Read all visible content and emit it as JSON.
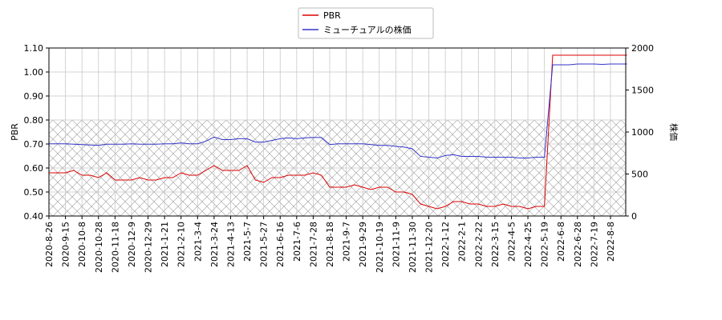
{
  "chart_data": {
    "type": "line",
    "categories": [
      "2020-8-26",
      null,
      "2020-9-15",
      null,
      "2020-10-8",
      null,
      "2020-10-28",
      null,
      "2020-11-18",
      null,
      "2020-12-9",
      null,
      "2020-12-29",
      null,
      "2021-1-21",
      null,
      "2021-2-10",
      null,
      "2021-3-4",
      null,
      "2021-3-24",
      null,
      "2021-4-13",
      null,
      "2021-5-7",
      null,
      "2021-5-27",
      null,
      "2021-6-16",
      null,
      "2021-7-6",
      null,
      "2021-7-28",
      null,
      "2021-8-18",
      null,
      "2021-9-7",
      null,
      "2021-9-29",
      null,
      "2021-10-19",
      null,
      "2021-11-9",
      null,
      "2021-11-30",
      null,
      "2021-12-20",
      null,
      "2022-1-12",
      null,
      "2022-2-1",
      null,
      "2022-2-22",
      null,
      "2022-3-15",
      null,
      "2022-4-5",
      null,
      "2022-4-25",
      null,
      "2022-5-19",
      null,
      "2022-6-8",
      null,
      "2022-6-28",
      null,
      "2022-7-19",
      null,
      "2022-8-8",
      null,
      null
    ],
    "series": [
      {
        "name": "PBR",
        "color": "#dd0000",
        "axis": "y",
        "values": [
          0.58,
          0.58,
          0.58,
          0.59,
          0.57,
          0.57,
          0.56,
          0.58,
          0.55,
          0.55,
          0.55,
          0.56,
          0.55,
          0.55,
          0.56,
          0.56,
          0.58,
          0.57,
          0.57,
          0.59,
          0.61,
          0.59,
          0.59,
          0.59,
          0.61,
          0.55,
          0.54,
          0.56,
          0.56,
          0.57,
          0.57,
          0.57,
          0.58,
          0.57,
          0.52,
          0.52,
          0.52,
          0.53,
          0.52,
          0.51,
          0.52,
          0.52,
          0.5,
          0.5,
          0.49,
          0.45,
          0.44,
          0.43,
          0.44,
          0.46,
          0.46,
          0.45,
          0.45,
          0.44,
          0.44,
          0.45,
          0.44,
          0.44,
          0.43,
          0.44,
          0.44,
          1.07,
          1.07,
          1.07,
          1.07,
          1.07,
          1.07,
          1.07,
          1.07,
          1.07,
          1.07
        ]
      },
      {
        "name": "ミューチュアルの株価",
        "color": "#3333cc",
        "axis": "y2",
        "values": [
          860,
          860,
          860,
          855,
          850,
          845,
          840,
          855,
          855,
          855,
          860,
          855,
          855,
          855,
          860,
          860,
          870,
          860,
          860,
          890,
          940,
          910,
          910,
          920,
          920,
          880,
          880,
          900,
          920,
          930,
          920,
          930,
          935,
          935,
          850,
          860,
          860,
          860,
          860,
          850,
          840,
          840,
          830,
          820,
          800,
          710,
          700,
          690,
          720,
          730,
          710,
          710,
          710,
          700,
          700,
          700,
          700,
          690,
          690,
          700,
          700,
          1800,
          1800,
          1800,
          1810,
          1810,
          1810,
          1805,
          1810,
          1810,
          1810
        ]
      }
    ],
    "ylabel": "PBR",
    "y2label": "株価",
    "ylim": [
      0.4,
      1.1
    ],
    "yticks": [
      {
        "value": 0.4,
        "label": "0.40"
      },
      {
        "value": 0.5,
        "label": "0.50"
      },
      {
        "value": 0.6,
        "label": "0.60"
      },
      {
        "value": 0.7,
        "label": "0.70"
      },
      {
        "value": 0.8,
        "label": "0.80"
      },
      {
        "value": 0.9,
        "label": "0.90"
      },
      {
        "value": 1.0,
        "label": "1.00"
      },
      {
        "value": 1.1,
        "label": "1.10"
      }
    ],
    "y2lim": [
      0,
      2000
    ],
    "y2ticks": [
      0,
      500,
      1000,
      1500,
      2000
    ],
    "hatch_ylim": [
      0.4,
      0.8
    ],
    "grid": true,
    "legend": "top"
  }
}
